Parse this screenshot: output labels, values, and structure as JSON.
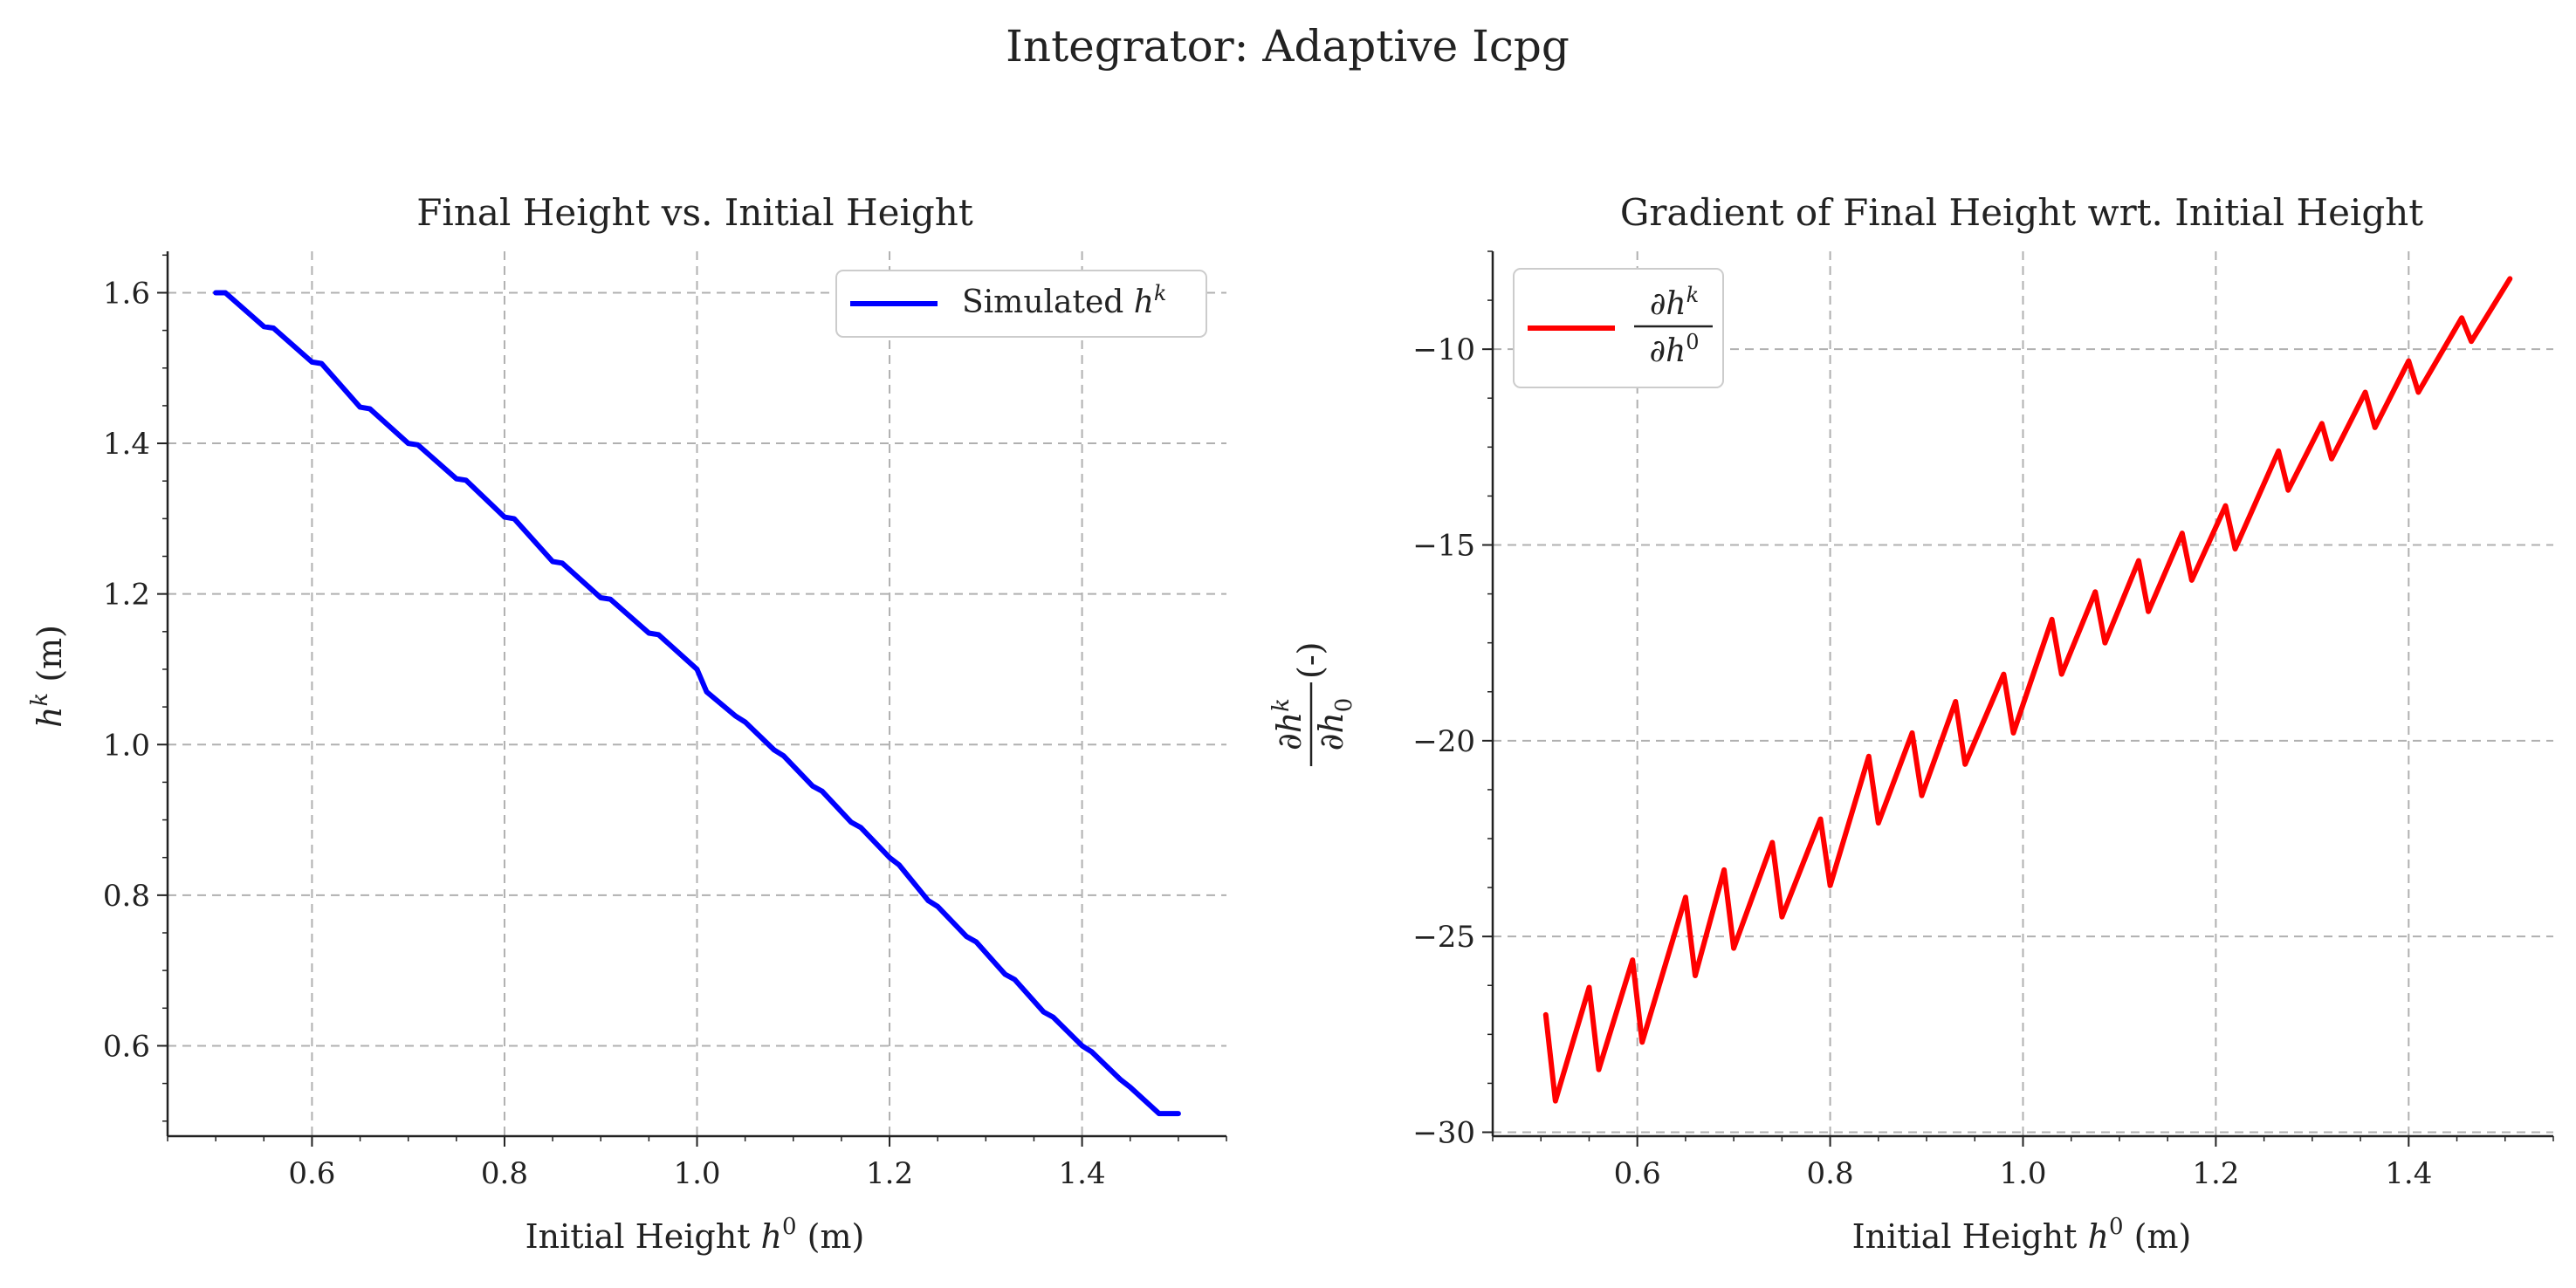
{
  "figure": {
    "suptitle": "Integrator: Adaptive Icpg"
  },
  "chart_data": [
    {
      "type": "line",
      "title": "Final Height vs. Initial Height",
      "xlabel": {
        "prefix": "Initial Height ",
        "sym": "h",
        "sup": "0",
        "suffix": " (m)"
      },
      "ylabel": {
        "sym": "h",
        "sup": "k",
        "suffix": " (m)"
      },
      "xlim": [
        0.45,
        1.55
      ],
      "ylim": [
        0.48,
        1.655
      ],
      "xticks": [
        0.6,
        0.8,
        1.0,
        1.2,
        1.4
      ],
      "xtick_labels": [
        "0.6",
        "0.8",
        "1.0",
        "1.2",
        "1.4"
      ],
      "yticks": [
        0.6,
        0.8,
        1.0,
        1.2,
        1.4,
        1.6
      ],
      "ytick_labels": [
        "0.6",
        "0.8",
        "1.0",
        "1.2",
        "1.4",
        "1.6"
      ],
      "grid": true,
      "legend_position": "top-right",
      "series": [
        {
          "name": {
            "prefix": "Simulated ",
            "sym": "h",
            "sup": "k"
          },
          "color": "#0000ff",
          "x": [
            0.5,
            0.51,
            0.55,
            0.56,
            0.6,
            0.61,
            0.65,
            0.66,
            0.7,
            0.71,
            0.75,
            0.76,
            0.8,
            0.81,
            0.85,
            0.86,
            0.9,
            0.91,
            0.95,
            0.96,
            1.0,
            1.01,
            1.04,
            1.05,
            1.08,
            1.09,
            1.12,
            1.13,
            1.16,
            1.17,
            1.2,
            1.21,
            1.24,
            1.25,
            1.28,
            1.29,
            1.32,
            1.33,
            1.36,
            1.37,
            1.4,
            1.41,
            1.44,
            1.45,
            1.48,
            1.5
          ],
          "y": [
            1.6,
            1.6,
            1.555,
            1.553,
            1.508,
            1.506,
            1.448,
            1.446,
            1.4,
            1.398,
            1.353,
            1.351,
            1.302,
            1.3,
            1.243,
            1.241,
            1.195,
            1.193,
            1.148,
            1.146,
            1.1,
            1.07,
            1.038,
            1.03,
            0.993,
            0.985,
            0.945,
            0.938,
            0.897,
            0.89,
            0.85,
            0.84,
            0.793,
            0.785,
            0.745,
            0.738,
            0.695,
            0.688,
            0.645,
            0.638,
            0.6,
            0.592,
            0.555,
            0.545,
            0.51,
            0.51
          ]
        }
      ]
    },
    {
      "type": "line",
      "title": "Gradient of Final Height wrt. Initial Height",
      "xlabel": {
        "prefix": "Initial Height ",
        "sym": "h",
        "sup": "0",
        "suffix": " (m)"
      },
      "ylabel": {
        "num": "∂h",
        "num_sup": "k",
        "den": "∂h",
        "den_sub": "0",
        "suffix": " (-)"
      },
      "xlim": [
        0.45,
        1.55
      ],
      "ylim": [
        -30.1,
        -7.5
      ],
      "xticks": [
        0.6,
        0.8,
        1.0,
        1.2,
        1.4
      ],
      "xtick_labels": [
        "0.6",
        "0.8",
        "1.0",
        "1.2",
        "1.4"
      ],
      "yticks": [
        -30,
        -25,
        -20,
        -15,
        -10
      ],
      "ytick_labels": [
        "−30",
        "−25",
        "−20",
        "−15",
        "−10"
      ],
      "grid": true,
      "legend_position": "top-left",
      "series": [
        {
          "name": {
            "num": "∂h",
            "num_sup": "k",
            "den": "∂h",
            "den_sup": "0"
          },
          "color": "#ff0000",
          "x": [
            0.505,
            0.515,
            0.55,
            0.56,
            0.595,
            0.605,
            0.65,
            0.66,
            0.69,
            0.7,
            0.74,
            0.75,
            0.79,
            0.8,
            0.84,
            0.85,
            0.885,
            0.895,
            0.93,
            0.94,
            0.98,
            0.99,
            1.03,
            1.04,
            1.075,
            1.085,
            1.12,
            1.13,
            1.165,
            1.175,
            1.21,
            1.22,
            1.265,
            1.275,
            1.31,
            1.32,
            1.355,
            1.365,
            1.4,
            1.41,
            1.455,
            1.465,
            1.505
          ],
          "y": [
            -27,
            -29.2,
            -26.3,
            -28.4,
            -25.6,
            -27.7,
            -24,
            -26,
            -23.3,
            -25.3,
            -22.6,
            -24.5,
            -22,
            -23.7,
            -20.4,
            -22.1,
            -19.8,
            -21.4,
            -19,
            -20.6,
            -18.3,
            -19.8,
            -16.9,
            -18.3,
            -16.2,
            -17.5,
            -15.4,
            -16.7,
            -14.7,
            -15.9,
            -14,
            -15.1,
            -12.6,
            -13.6,
            -11.9,
            -12.8,
            -11.1,
            -12,
            -10.3,
            -11.1,
            -9.2,
            -9.8,
            -8.2
          ]
        }
      ]
    }
  ]
}
